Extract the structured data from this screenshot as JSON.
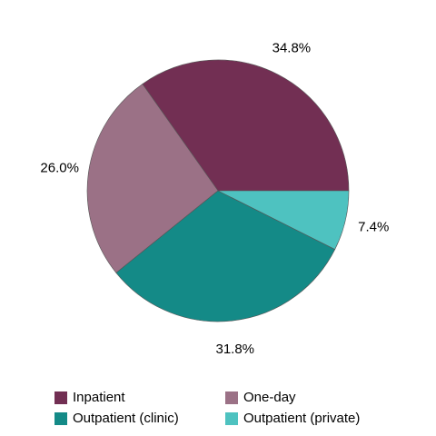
{
  "chart_data": {
    "type": "pie",
    "categories": [
      "Inpatient",
      "One-day",
      "Outpatient (clinic)",
      "Outpatient (private)"
    ],
    "values": [
      34.8,
      26.0,
      31.8,
      7.4
    ],
    "value_labels": [
      "34.8%",
      "26.0%",
      "31.8%",
      "7.4%"
    ],
    "colors": [
      "#722f53",
      "#9b7186",
      "#148a87",
      "#4ec2c0"
    ],
    "legend": "bottom"
  }
}
